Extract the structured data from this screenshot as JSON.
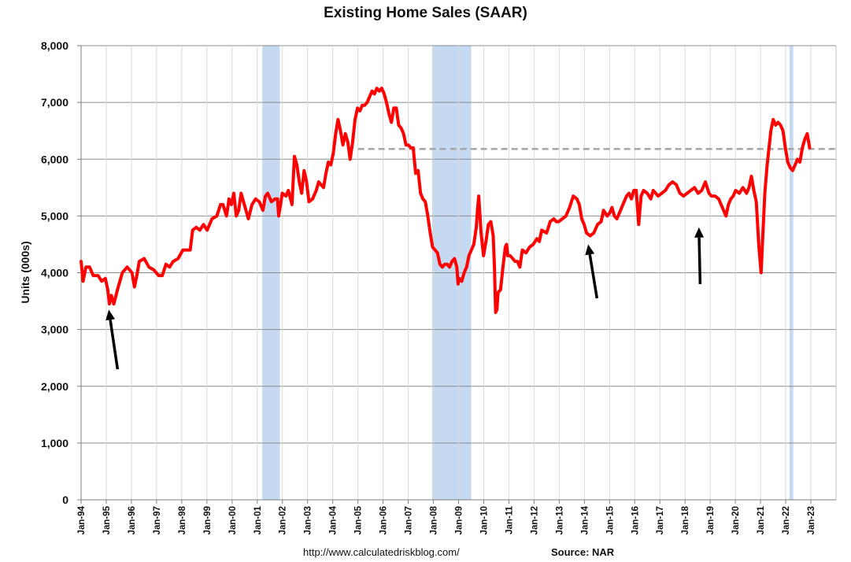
{
  "chart_data": {
    "type": "line",
    "title": "Existing Home Sales (SAAR)",
    "ylabel": "Units (000s)",
    "xlabel": "",
    "ylim": [
      0,
      8000
    ],
    "yticks": [
      0,
      1000,
      2000,
      3000,
      4000,
      5000,
      6000,
      7000,
      8000
    ],
    "ytick_labels": [
      "0",
      "1,000",
      "2,000",
      "3,000",
      "4,000",
      "5,000",
      "6,000",
      "7,000",
      "8,000"
    ],
    "xtick_labels": [
      "Jan-94",
      "Jan-95",
      "Jan-96",
      "Jan-97",
      "Jan-98",
      "Jan-99",
      "Jan-00",
      "Jan-01",
      "Jan-02",
      "Jan-03",
      "Jan-04",
      "Jan-05",
      "Jan-06",
      "Jan-07",
      "Jan-08",
      "Jan-09",
      "Jan-10",
      "Jan-11",
      "Jan-12",
      "Jan-13",
      "Jan-14",
      "Jan-15",
      "Jan-16",
      "Jan-17",
      "Jan-18",
      "Jan-19",
      "Jan-20",
      "Jan-21",
      "Jan-22",
      "Jan-23"
    ],
    "x_start_year": 1994,
    "x_end_year": 2023,
    "grid": true,
    "series": [
      {
        "color": "#ff0000",
        "points": [
          [
            1994.0,
            4200
          ],
          [
            1994.08,
            3850
          ],
          [
            1994.2,
            4100
          ],
          [
            1994.35,
            4100
          ],
          [
            1994.5,
            3950
          ],
          [
            1994.7,
            3950
          ],
          [
            1994.85,
            3850
          ],
          [
            1995.0,
            3900
          ],
          [
            1995.1,
            3700
          ],
          [
            1995.17,
            3450
          ],
          [
            1995.25,
            3600
          ],
          [
            1995.35,
            3450
          ],
          [
            1995.5,
            3700
          ],
          [
            1995.7,
            4000
          ],
          [
            1995.9,
            4100
          ],
          [
            1996.1,
            4000
          ],
          [
            1996.2,
            3750
          ],
          [
            1996.3,
            3950
          ],
          [
            1996.4,
            4200
          ],
          [
            1996.6,
            4250
          ],
          [
            1996.8,
            4100
          ],
          [
            1997.0,
            4050
          ],
          [
            1997.2,
            3950
          ],
          [
            1997.35,
            3950
          ],
          [
            1997.5,
            4150
          ],
          [
            1997.65,
            4100
          ],
          [
            1997.8,
            4200
          ],
          [
            1998.0,
            4250
          ],
          [
            1998.2,
            4400
          ],
          [
            1998.5,
            4400
          ],
          [
            1998.6,
            4750
          ],
          [
            1998.75,
            4800
          ],
          [
            1998.9,
            4750
          ],
          [
            1999.05,
            4850
          ],
          [
            1999.2,
            4750
          ],
          [
            1999.4,
            4950
          ],
          [
            1999.6,
            5000
          ],
          [
            1999.75,
            5200
          ],
          [
            1999.85,
            5200
          ],
          [
            2000.0,
            5000
          ],
          [
            2000.1,
            5300
          ],
          [
            2000.2,
            5200
          ],
          [
            2000.3,
            5400
          ],
          [
            2000.4,
            5000
          ],
          [
            2000.5,
            5100
          ],
          [
            2000.6,
            5400
          ],
          [
            2000.7,
            5250
          ],
          [
            2000.8,
            5100
          ],
          [
            2000.9,
            4950
          ],
          [
            2001.05,
            5200
          ],
          [
            2001.2,
            5300
          ],
          [
            2001.35,
            5250
          ],
          [
            2001.5,
            5100
          ],
          [
            2001.6,
            5350
          ],
          [
            2001.7,
            5400
          ],
          [
            2001.85,
            5250
          ],
          [
            2002.0,
            5300
          ],
          [
            2002.1,
            5300
          ],
          [
            2002.15,
            5000
          ],
          [
            2002.3,
            5400
          ],
          [
            2002.45,
            5350
          ],
          [
            2002.55,
            5450
          ],
          [
            2002.7,
            5200
          ],
          [
            2002.8,
            6050
          ],
          [
            2002.9,
            5900
          ],
          [
            2003.0,
            5600
          ],
          [
            2003.1,
            5400
          ],
          [
            2003.2,
            5800
          ],
          [
            2003.3,
            5600
          ],
          [
            2003.4,
            5250
          ],
          [
            2003.55,
            5300
          ],
          [
            2003.7,
            5450
          ],
          [
            2003.8,
            5600
          ],
          [
            2003.9,
            5550
          ],
          [
            2004.0,
            5500
          ],
          [
            2004.1,
            5750
          ],
          [
            2004.2,
            5950
          ],
          [
            2004.3,
            5900
          ],
          [
            2004.4,
            6100
          ],
          [
            2004.5,
            6450
          ],
          [
            2004.6,
            6700
          ],
          [
            2004.7,
            6500
          ],
          [
            2004.8,
            6250
          ],
          [
            2004.9,
            6450
          ],
          [
            2005.0,
            6300
          ],
          [
            2005.1,
            6000
          ],
          [
            2005.2,
            6300
          ],
          [
            2005.3,
            6700
          ],
          [
            2005.4,
            6900
          ],
          [
            2005.5,
            6850
          ],
          [
            2005.6,
            6950
          ],
          [
            2005.7,
            6950
          ],
          [
            2005.8,
            7000
          ],
          [
            2005.9,
            7100
          ],
          [
            2006.0,
            7200
          ],
          [
            2006.1,
            7150
          ],
          [
            2006.2,
            7250
          ],
          [
            2006.3,
            7200
          ],
          [
            2006.4,
            7250
          ],
          [
            2006.5,
            7150
          ],
          [
            2006.6,
            7000
          ],
          [
            2006.7,
            6800
          ],
          [
            2006.8,
            6650
          ],
          [
            2006.9,
            6900
          ],
          [
            2007.0,
            6900
          ],
          [
            2007.1,
            6600
          ],
          [
            2007.2,
            6550
          ],
          [
            2007.3,
            6450
          ],
          [
            2007.4,
            6250
          ],
          [
            2007.5,
            6250
          ],
          [
            2007.6,
            6200
          ],
          [
            2007.7,
            6200
          ],
          [
            2007.8,
            5750
          ],
          [
            2007.9,
            5800
          ],
          [
            2008.0,
            5400
          ],
          [
            2008.1,
            5300
          ],
          [
            2008.2,
            5250
          ],
          [
            2008.3,
            5000
          ],
          [
            2008.4,
            4700
          ],
          [
            2008.5,
            4450
          ],
          [
            2008.6,
            4400
          ],
          [
            2008.7,
            4350
          ],
          [
            2008.8,
            4150
          ],
          [
            2008.9,
            4100
          ],
          [
            2009.0,
            4150
          ],
          [
            2009.1,
            4150
          ],
          [
            2009.2,
            4100
          ],
          [
            2009.3,
            4200
          ],
          [
            2009.4,
            4250
          ],
          [
            2009.5,
            4100
          ],
          [
            2009.55,
            3800
          ],
          [
            2009.6,
            3900
          ],
          [
            2009.7,
            3850
          ],
          [
            2009.8,
            4000
          ],
          [
            2009.9,
            4100
          ],
          [
            2010.0,
            4300
          ],
          [
            2010.1,
            4400
          ],
          [
            2010.2,
            4500
          ],
          [
            2010.3,
            4800
          ],
          [
            2010.35,
            5100
          ],
          [
            2010.4,
            5350
          ],
          [
            2010.5,
            4700
          ],
          [
            2010.6,
            4300
          ],
          [
            2010.7,
            4550
          ],
          [
            2010.8,
            4850
          ],
          [
            2010.9,
            4900
          ],
          [
            2011.0,
            4650
          ],
          [
            2011.05,
            4100
          ],
          [
            2011.1,
            3300
          ],
          [
            2011.15,
            3350
          ],
          [
            2011.2,
            3650
          ],
          [
            2011.3,
            3700
          ],
          [
            2011.4,
            4100
          ],
          [
            2011.5,
            4450
          ],
          [
            2011.55,
            4500
          ],
          [
            2011.6,
            4300
          ],
          [
            2011.7,
            4300
          ],
          [
            2011.8,
            4250
          ],
          [
            2011.9,
            4200
          ],
          [
            2012.0,
            4200
          ],
          [
            2012.1,
            4100
          ],
          [
            2012.2,
            4400
          ],
          [
            2012.35,
            4350
          ],
          [
            2012.5,
            4450
          ],
          [
            2012.65,
            4500
          ],
          [
            2012.8,
            4600
          ],
          [
            2012.9,
            4550
          ],
          [
            2013.0,
            4750
          ],
          [
            2013.2,
            4700
          ],
          [
            2013.35,
            4900
          ],
          [
            2013.5,
            4950
          ],
          [
            2013.6,
            4900
          ],
          [
            2013.7,
            4900
          ],
          [
            2013.85,
            4950
          ],
          [
            2014.0,
            5000
          ],
          [
            2014.15,
            5150
          ],
          [
            2014.3,
            5350
          ],
          [
            2014.45,
            5300
          ],
          [
            2014.55,
            5200
          ],
          [
            2014.65,
            4950
          ],
          [
            2014.75,
            4850
          ],
          [
            2014.85,
            4700
          ],
          [
            2015.0,
            4650
          ],
          [
            2015.15,
            4700
          ],
          [
            2015.3,
            4850
          ],
          [
            2015.45,
            4900
          ],
          [
            2015.55,
            5100
          ],
          [
            2015.7,
            5000
          ],
          [
            2015.8,
            5050
          ],
          [
            2015.9,
            5150
          ],
          [
            2016.0,
            5000
          ],
          [
            2016.1,
            4950
          ],
          [
            2016.2,
            5050
          ],
          [
            2016.35,
            5200
          ],
          [
            2016.5,
            5350
          ],
          [
            2016.6,
            5400
          ],
          [
            2016.7,
            5300
          ],
          [
            2016.8,
            5450
          ],
          [
            2016.9,
            5450
          ],
          [
            2017.0,
            4850
          ],
          [
            2017.1,
            5350
          ],
          [
            2017.2,
            5450
          ],
          [
            2017.35,
            5400
          ],
          [
            2017.5,
            5300
          ],
          [
            2017.6,
            5450
          ],
          [
            2017.7,
            5400
          ],
          [
            2017.8,
            5350
          ],
          [
            2017.95,
            5400
          ],
          [
            2018.1,
            5450
          ],
          [
            2018.25,
            5550
          ],
          [
            2018.4,
            5600
          ],
          [
            2018.55,
            5550
          ],
          [
            2018.7,
            5400
          ],
          [
            2018.85,
            5350
          ],
          [
            2019.0,
            5400
          ],
          [
            2019.15,
            5450
          ],
          [
            2019.3,
            5500
          ],
          [
            2019.45,
            5400
          ],
          [
            2019.6,
            5450
          ],
          [
            2019.75,
            5600
          ],
          [
            2019.9,
            5400
          ],
          [
            2020.0,
            5350
          ],
          [
            2020.15,
            5350
          ],
          [
            2020.3,
            5300
          ],
          [
            2020.45,
            5150
          ],
          [
            2020.6,
            5000
          ],
          [
            2020.7,
            5200
          ],
          [
            2020.8,
            5300
          ],
          [
            2020.9,
            5350
          ],
          [
            2021.0,
            5450
          ],
          [
            2021.15,
            5400
          ],
          [
            2021.3,
            5500
          ],
          [
            2021.45,
            5400
          ],
          [
            2021.55,
            5500
          ],
          [
            2021.65,
            5700
          ],
          [
            2021.75,
            5450
          ],
          [
            2021.85,
            5250
          ],
          [
            2021.95,
            4500
          ],
          [
            2022.05,
            4000
          ],
          [
            2022.2,
            5400
          ],
          [
            2022.3,
            5900
          ],
          [
            2022.45,
            6500
          ],
          [
            2022.55,
            6700
          ],
          [
            2022.65,
            6600
          ],
          [
            2022.75,
            6650
          ],
          [
            2022.85,
            6600
          ],
          [
            2022.95,
            6500
          ],
          [
            2023.05,
            6200
          ],
          [
            2023.15,
            5950
          ],
          [
            2023.25,
            5850
          ],
          [
            2023.35,
            5800
          ],
          [
            2023.45,
            5900
          ],
          [
            2023.55,
            6000
          ],
          [
            2023.65,
            5950
          ],
          [
            2023.75,
            6200
          ],
          [
            2023.85,
            6350
          ],
          [
            2023.95,
            6450
          ],
          [
            2024.05,
            6200
          ]
        ]
      }
    ],
    "reference_line": {
      "value": 6180,
      "x_from": 2005.0,
      "x_to": 2024.95,
      "color": "#a6a6a6",
      "style": "dashed"
    },
    "recession_bands": [
      {
        "x_from": 2001.2,
        "x_to": 2001.9
      },
      {
        "x_from": 2007.95,
        "x_to": 2009.5
      },
      {
        "x_from": 2022.15,
        "x_to": 2022.3
      }
    ],
    "annotations": [
      {
        "type": "arrow",
        "x_tail": 1995.45,
        "y_tail": 2300,
        "x_head": 1995.1,
        "y_head": 3350
      },
      {
        "type": "arrow",
        "x_tail": 2014.5,
        "y_tail": 3550,
        "x_head": 2014.15,
        "y_head": 4500
      },
      {
        "type": "arrow",
        "x_tail": 2018.6,
        "y_tail": 3800,
        "x_head": 2018.55,
        "y_head": 4800
      }
    ],
    "band_color": "#c5d9f1"
  },
  "footer": {
    "url": "http://www.calculatedriskblog.com/",
    "source": "Source: NAR"
  }
}
